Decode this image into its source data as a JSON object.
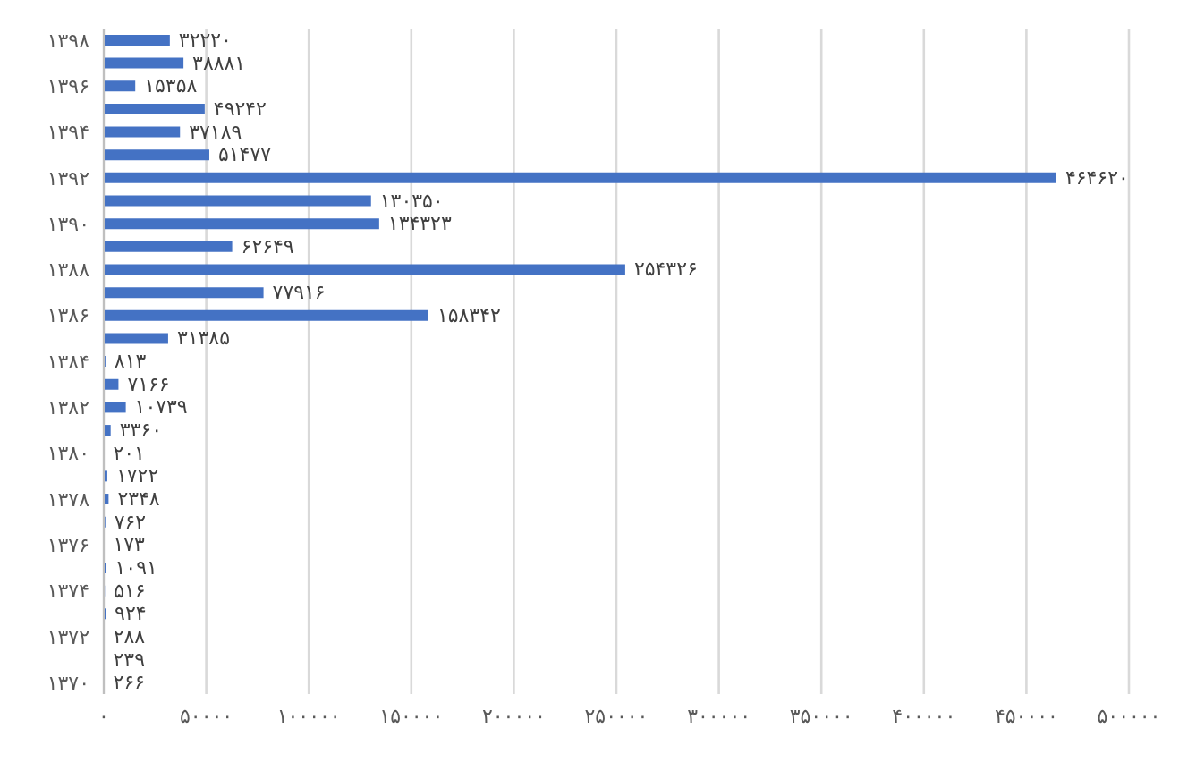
{
  "chart_data": {
    "type": "bar",
    "orientation": "horizontal",
    "categories": [
      "۱۳۹۸",
      null,
      "۱۳۹۶",
      null,
      "۱۳۹۴",
      null,
      "۱۳۹۲",
      null,
      "۱۳۹۰",
      null,
      "۱۳۸۸",
      null,
      "۱۳۸۶",
      null,
      "۱۳۸۴",
      null,
      "۱۳۸۲",
      null,
      "۱۳۸۰",
      null,
      "۱۳۷۸",
      null,
      "۱۳۷۶",
      null,
      "۱۳۷۴",
      null,
      "۱۳۷۲",
      null,
      "۱۳۷۰"
    ],
    "values": [
      32220,
      38881,
      15358,
      49242,
      37189,
      51477,
      464620,
      130350,
      134323,
      62649,
      254326,
      77916,
      158342,
      31385,
      813,
      7166,
      10739,
      3360,
      201,
      1722,
      2348,
      762,
      173,
      1091,
      516,
      924,
      288,
      239,
      266
    ],
    "value_labels": [
      "۳۲۲۲۰",
      "۳۸۸۸۱",
      "۱۵۳۵۸",
      "۴۹۲۴۲",
      "۳۷۱۸۹",
      "۵۱۴۷۷",
      "۴۶۴۶۲۰",
      "۱۳۰۳۵۰",
      "۱۳۴۳۲۳",
      "۶۲۶۴۹",
      "۲۵۴۳۲۶",
      "۷۷۹۱۶",
      "۱۵۸۳۴۲",
      "۳۱۳۸۵",
      "۸۱۳",
      "۷۱۶۶",
      "۱۰۷۳۹",
      "۳۳۶۰",
      "۲۰۱",
      "۱۷۲۲",
      "۲۳۴۸",
      "۷۶۲",
      "۱۷۳",
      "۱۰۹۱",
      "۵۱۶",
      "۹۲۴",
      "۲۸۸",
      "۲۳۹",
      "۲۶۶"
    ],
    "color": "#4472c4",
    "xlim": [
      0,
      500000
    ],
    "xticks": [
      {
        "value": 0,
        "label": "۰"
      },
      {
        "value": 50000,
        "label": "۵۰۰۰۰"
      },
      {
        "value": 100000,
        "label": "۱۰۰۰۰۰"
      },
      {
        "value": 150000,
        "label": "۱۵۰۰۰۰"
      },
      {
        "value": 200000,
        "label": "۲۰۰۰۰۰"
      },
      {
        "value": 250000,
        "label": "۲۵۰۰۰۰"
      },
      {
        "value": 300000,
        "label": "۳۰۰۰۰۰"
      },
      {
        "value": 350000,
        "label": "۳۵۰۰۰۰"
      },
      {
        "value": 400000,
        "label": "۴۰۰۰۰۰"
      },
      {
        "value": 450000,
        "label": "۴۵۰۰۰۰"
      },
      {
        "value": 500000,
        "label": "۵۰۰۰۰۰"
      }
    ],
    "grid": "x"
  }
}
